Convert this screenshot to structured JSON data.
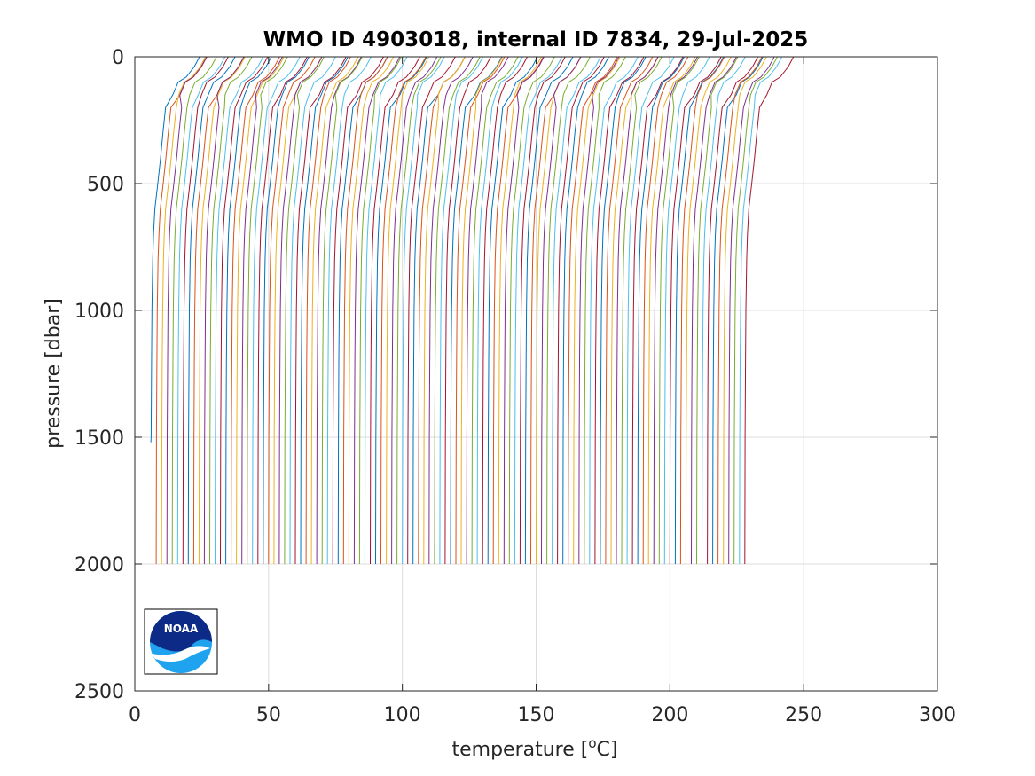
{
  "chart_data": {
    "type": "line",
    "title": "WMO ID 4903018, internal ID 7834, 29-Jul-2025",
    "xlabel": "temperature [",
    "xlabel_sup": "o",
    "xlabel_end": "C]",
    "ylabel": "pressure [dbar]",
    "xlim": [
      0,
      300
    ],
    "ylim": [
      0,
      2500
    ],
    "y_reversed": true,
    "grid": true,
    "xticks": [
      0,
      50,
      100,
      150,
      200,
      250,
      300
    ],
    "yticks": [
      0,
      500,
      1000,
      1500,
      2000,
      2500
    ],
    "xtick_labels": [
      "0",
      "50",
      "100",
      "150",
      "200",
      "250",
      "300"
    ],
    "ytick_labels": [
      "0",
      "500",
      "1000",
      "1500",
      "2000",
      "2500"
    ],
    "profile_count": 112,
    "first_profile_bottom_temperature": 6,
    "profile_offset_step": 2,
    "first_profile_max_pressure": 1520,
    "max_pressure": 2000,
    "colors": [
      "#0072bd",
      "#d95319",
      "#edb120",
      "#7e2f8e",
      "#77ac30",
      "#4dbeee",
      "#a2142f"
    ],
    "profile_shape": {
      "pressure": [
        0,
        10,
        40,
        80,
        100,
        150,
        200,
        300,
        400,
        500,
        600,
        700,
        800,
        1000,
        1200,
        1500,
        2000
      ],
      "temperature_anomaly": [
        17,
        16.5,
        15,
        12,
        9,
        7,
        5.5,
        4.5,
        3.6,
        2.6,
        1.5,
        1.0,
        0.7,
        0.4,
        0.25,
        0.1,
        0
      ]
    }
  },
  "logo": {
    "name": "NOAA",
    "text": "NOAA"
  }
}
